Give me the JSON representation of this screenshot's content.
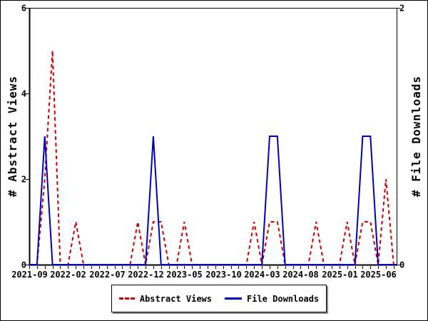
{
  "window": {
    "background": "#ffffff",
    "border_color": "#000000"
  },
  "chart_data": {
    "type": "line",
    "title": "",
    "grid": false,
    "x": [
      "2021-09",
      "2021-10",
      "2021-11",
      "2021-12",
      "2022-01",
      "2022-02",
      "2022-03",
      "2022-04",
      "2022-05",
      "2022-06",
      "2022-07",
      "2022-08",
      "2022-09",
      "2022-10",
      "2022-11",
      "2022-12",
      "2023-01",
      "2023-02",
      "2023-03",
      "2023-04",
      "2023-05",
      "2023-06",
      "2023-07",
      "2023-08",
      "2023-09",
      "2023-10",
      "2023-11",
      "2023-12",
      "2024-01",
      "2024-02",
      "2024-03",
      "2024-04",
      "2024-05",
      "2024-06",
      "2024-07",
      "2024-08",
      "2024-09",
      "2024-10",
      "2024-11",
      "2024-12",
      "2025-01",
      "2025-02",
      "2025-03",
      "2025-04",
      "2025-05",
      "2025-06",
      "2025-07",
      "2025-08"
    ],
    "x_tick_label_interval": 5,
    "x_axis": {
      "tick_unit": "month",
      "first": "2021-09",
      "last": "2025-08",
      "visible_labels": [
        "2021-09",
        "2022-02",
        "2022-07",
        "2022-12",
        "2023-05",
        "2023-10",
        "2024-03",
        "2024-08",
        "2025-01",
        "2025-06"
      ]
    },
    "series": [
      {
        "name": "Abstract Views",
        "axis": "left",
        "color": "#cc0000",
        "line_style": "dashed",
        "values": [
          0,
          0,
          2,
          5,
          0,
          0,
          1,
          0,
          0,
          0,
          0,
          0,
          0,
          0,
          1,
          0,
          1,
          1,
          0,
          0,
          1,
          0,
          0,
          0,
          0,
          0,
          0,
          0,
          0,
          1,
          0,
          1,
          1,
          0,
          0,
          0,
          0,
          1,
          0,
          0,
          0,
          1,
          0,
          1,
          1,
          0,
          2,
          0
        ]
      },
      {
        "name": "File Downloads",
        "axis": "right",
        "color": "#0000bb",
        "line_style": "solid",
        "values": [
          0,
          0,
          1,
          0,
          0,
          0,
          0,
          0,
          0,
          0,
          0,
          0,
          0,
          0,
          0,
          0,
          1,
          0,
          0,
          0,
          0,
          0,
          0,
          0,
          0,
          0,
          0,
          0,
          0,
          0,
          0,
          1,
          1,
          0,
          0,
          0,
          0,
          0,
          0,
          0,
          0,
          0,
          0,
          1,
          1,
          0,
          0,
          0
        ]
      }
    ],
    "left_axis": {
      "label": "# Abstract Views",
      "min": 0,
      "max": 6,
      "ticks": [
        0,
        2,
        4,
        6
      ]
    },
    "right_axis": {
      "label": "# File Downloads",
      "min": 0,
      "max": 2,
      "ticks": [
        0,
        2
      ]
    },
    "legend": {
      "position": "bottom-center"
    }
  }
}
